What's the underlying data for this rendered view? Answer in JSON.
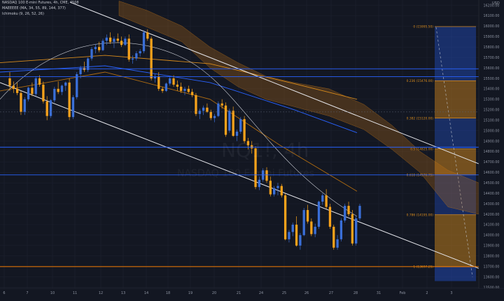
{
  "header": {
    "line1": "NASDAQ 100 E-mini Futures, 4h, CME, 4508",
    "line2": "MAEEEEE (MA, 34, 55, 89, 144, 377)",
    "line3": "Ichimoku (9, 26, 52, 26)"
  },
  "watermark": {
    "symbol": "NQ1!, 4h",
    "name": "NASDAQ 100 E-mini Futures"
  },
  "currency": "USD",
  "colors": {
    "up": "#3a6fd8",
    "down": "#f7a21b",
    "background": "#131722",
    "fib": "#d68a1c"
  },
  "fib_labels": [
    {
      "ratio": "0 (15995.50)",
      "price": 15995.5
    },
    {
      "ratio": "0.236 (15476.00)",
      "price": 15476
    },
    {
      "ratio": "0.382 (15120.00)",
      "price": 15120
    },
    {
      "ratio": "0.5 (14825.00)",
      "price": 14825
    },
    {
      "ratio": "0.618 (14576.75)",
      "price": 14576.75
    },
    {
      "ratio": "0.786 (14195.00)",
      "price": 14195
    },
    {
      "ratio": "1 (13697.25)",
      "price": 13697.25
    }
  ],
  "price_tags": [
    {
      "text": "15591.50",
      "price": 15591.5,
      "color": "#2962ff"
    },
    {
      "text": "15515.75",
      "price": 15515.75,
      "color": "#2962ff"
    },
    {
      "text": "15178.75",
      "price": 15178.75,
      "color": "#4a4f5c",
      "prefix": "Avg"
    },
    {
      "text": "14841.50",
      "price": 14841.5,
      "color": "#2962ff"
    },
    {
      "text": "14576.25",
      "price": 14576.25,
      "color": "#2962ff"
    },
    {
      "text": "13698.50",
      "price": 13698.5,
      "color": "#f57c00"
    }
  ],
  "chart_data": {
    "type": "candlestick",
    "title": "NASDAQ 100 E-mini Futures, 4h, CME",
    "ylim": [
      13490,
      16250
    ],
    "y_ticks": [
      13500,
      13600,
      13700,
      13800,
      13900,
      14000,
      14100,
      14200,
      14300,
      14400,
      14500,
      14600,
      14700,
      14800,
      14900,
      15000,
      15100,
      15200,
      15300,
      15400,
      15500,
      15600,
      15700,
      15800,
      15900,
      16000,
      16100,
      16200
    ],
    "x_ticks": [
      "6",
      "7",
      "10",
      "11",
      "12",
      "13",
      "14",
      "18",
      "19",
      "20",
      "21",
      "24",
      "25",
      "26",
      "27",
      "28",
      "31",
      "Feb",
      "2",
      "3"
    ],
    "candles": [
      [
        15500,
        15560,
        15380,
        15430
      ],
      [
        15430,
        15470,
        15360,
        15400
      ],
      [
        15400,
        15460,
        15340,
        15360
      ],
      [
        15360,
        15380,
        15150,
        15180
      ],
      [
        15180,
        15320,
        15150,
        15300
      ],
      [
        15300,
        15420,
        15280,
        15410
      ],
      [
        15410,
        15460,
        15330,
        15350
      ],
      [
        15350,
        15520,
        15330,
        15500
      ],
      [
        15500,
        15530,
        15420,
        15440
      ],
      [
        15440,
        15470,
        15260,
        15280
      ],
      [
        15280,
        15330,
        15100,
        15140
      ],
      [
        15140,
        15300,
        15120,
        15290
      ],
      [
        15290,
        15420,
        15270,
        15400
      ],
      [
        15400,
        15470,
        15350,
        15370
      ],
      [
        15370,
        15440,
        15340,
        15430
      ],
      [
        15430,
        15470,
        15380,
        15460
      ],
      [
        15460,
        15500,
        15100,
        15130
      ],
      [
        15130,
        15340,
        15110,
        15320
      ],
      [
        15320,
        15560,
        15300,
        15540
      ],
      [
        15540,
        15620,
        15500,
        15600
      ],
      [
        15600,
        15660,
        15560,
        15580
      ],
      [
        15580,
        15700,
        15560,
        15690
      ],
      [
        15690,
        15800,
        15670,
        15780
      ],
      [
        15780,
        15830,
        15740,
        15800
      ],
      [
        15800,
        15850,
        15750,
        15770
      ],
      [
        15770,
        15880,
        15760,
        15860
      ],
      [
        15860,
        15920,
        15820,
        15890
      ],
      [
        15890,
        15940,
        15830,
        15850
      ],
      [
        15850,
        15900,
        15790,
        15880
      ],
      [
        15880,
        15930,
        15840,
        15860
      ],
      [
        15860,
        15900,
        15800,
        15820
      ],
      [
        15820,
        15900,
        15810,
        15880
      ],
      [
        15880,
        15920,
        15660,
        15680
      ],
      [
        15680,
        15720,
        15640,
        15690
      ],
      [
        15690,
        15760,
        15670,
        15740
      ],
      [
        15740,
        15780,
        15710,
        15760
      ],
      [
        15760,
        15960,
        15740,
        15940
      ],
      [
        15940,
        15970,
        15860,
        15880
      ],
      [
        15880,
        15900,
        15480,
        15500
      ],
      [
        15500,
        15540,
        15460,
        15520
      ],
      [
        15520,
        15560,
        15380,
        15400
      ],
      [
        15400,
        15420,
        15360,
        15380
      ],
      [
        15380,
        15460,
        15370,
        15450
      ],
      [
        15450,
        15520,
        15430,
        15500
      ],
      [
        15500,
        15530,
        15420,
        15440
      ],
      [
        15440,
        15480,
        15380,
        15420
      ],
      [
        15420,
        15460,
        15360,
        15380
      ],
      [
        15380,
        15420,
        15340,
        15400
      ],
      [
        15400,
        15430,
        15360,
        15370
      ],
      [
        15370,
        15400,
        15320,
        15340
      ],
      [
        15340,
        15360,
        15140,
        15160
      ],
      [
        15160,
        15210,
        15110,
        15190
      ],
      [
        15190,
        15240,
        15150,
        15220
      ],
      [
        15220,
        15260,
        15170,
        15180
      ],
      [
        15180,
        15200,
        15100,
        15120
      ],
      [
        15120,
        15160,
        15080,
        15140
      ],
      [
        15140,
        15280,
        15130,
        15260
      ],
      [
        15260,
        15300,
        15210,
        15240
      ],
      [
        15240,
        15270,
        14940,
        14960
      ],
      [
        15000,
        15210,
        14980,
        15190
      ],
      [
        15190,
        15230,
        14940,
        14950
      ],
      [
        14950,
        15010,
        14900,
        14990
      ],
      [
        14990,
        15130,
        14970,
        15110
      ],
      [
        15110,
        15140,
        14880,
        14900
      ],
      [
        14900,
        14930,
        14820,
        14860
      ],
      [
        14860,
        14900,
        14780,
        14830
      ],
      [
        14830,
        14850,
        14440,
        14460
      ],
      [
        14460,
        14560,
        14430,
        14530
      ],
      [
        14530,
        14640,
        14510,
        14620
      ],
      [
        14620,
        14650,
        14500,
        14520
      ],
      [
        14520,
        14560,
        14370,
        14390
      ],
      [
        14390,
        14470,
        14370,
        14450
      ],
      [
        14450,
        14500,
        14380,
        14470
      ],
      [
        14470,
        14490,
        14360,
        14380
      ],
      [
        14380,
        14400,
        13950,
        13960
      ],
      [
        13960,
        14050,
        13930,
        14030
      ],
      [
        14030,
        14120,
        13990,
        14100
      ],
      [
        14100,
        14180,
        13890,
        13900
      ],
      [
        13900,
        14020,
        13860,
        14000
      ],
      [
        14000,
        14260,
        13990,
        14240
      ],
      [
        14240,
        14290,
        14110,
        14130
      ],
      [
        14130,
        14160,
        13990,
        14010
      ],
      [
        14010,
        14110,
        13980,
        14080
      ],
      [
        14080,
        14330,
        14060,
        14320
      ],
      [
        14320,
        14400,
        14290,
        14380
      ],
      [
        14380,
        14440,
        14250,
        14270
      ],
      [
        14270,
        14300,
        14060,
        14080
      ],
      [
        14080,
        14100,
        13860,
        13880
      ],
      [
        13880,
        14000,
        13860,
        13960
      ],
      [
        13960,
        14160,
        13940,
        14140
      ],
      [
        14140,
        14300,
        14120,
        14280
      ],
      [
        14280,
        14320,
        14180,
        14200
      ],
      [
        14200,
        14240,
        13900,
        13920
      ],
      [
        13920,
        14180,
        13900,
        14160
      ],
      [
        14160,
        14300,
        14140,
        14280
      ]
    ]
  }
}
